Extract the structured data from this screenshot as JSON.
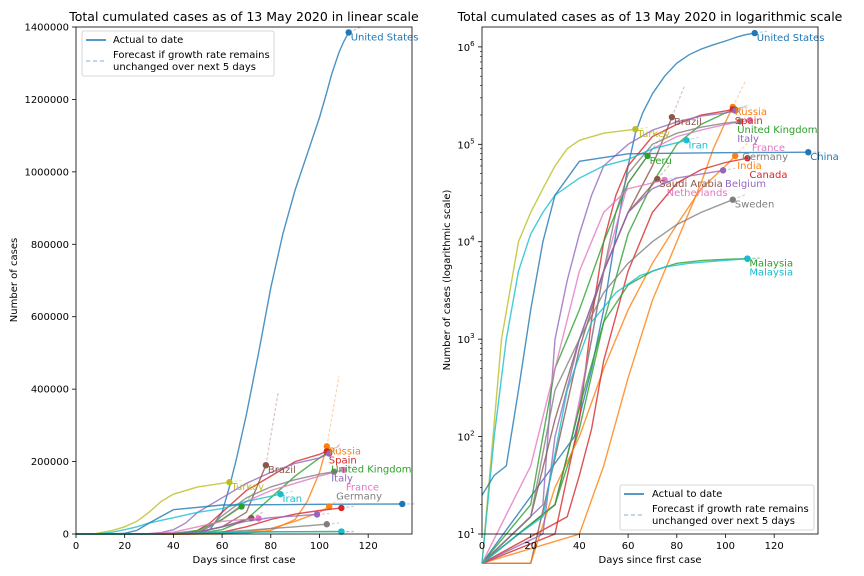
{
  "chart_data": [
    {
      "type": "line",
      "title": "Total cumulated cases as of 13 May 2020 in linear scale",
      "xlabel": "Days since first case",
      "ylabel": "Number of cases",
      "xlim": [
        0,
        138
      ],
      "ylim": [
        0,
        1400000
      ],
      "xticks": [
        0,
        20,
        40,
        60,
        80,
        100,
        120
      ],
      "yticks": [
        0,
        200000,
        400000,
        600000,
        800000,
        1000000,
        1200000,
        1400000
      ],
      "legend": {
        "position": "top-left",
        "entries": [
          "Actual to date",
          "Forecast if growth rate remains unchanged over next 5 days"
        ]
      },
      "series": [
        {
          "name": "United States",
          "color": "#1f77b4",
          "x": [
            0,
            38,
            45,
            50,
            55,
            60,
            63,
            66,
            70,
            75,
            80,
            85,
            90,
            95,
            100,
            103,
            105,
            108,
            110,
            112
          ],
          "y": [
            1,
            100,
            500,
            2000,
            12000,
            60000,
            130000,
            210000,
            330000,
            500000,
            680000,
            830000,
            950000,
            1050000,
            1150000,
            1220000,
            1270000,
            1330000,
            1360000,
            1385000
          ]
        },
        {
          "name": "Russia",
          "color": "#ff7f0e",
          "x": [
            0,
            40,
            50,
            60,
            70,
            80,
            90,
            95,
            100,
            103
          ],
          "y": [
            1,
            10,
            50,
            400,
            2500,
            10000,
            40000,
            90000,
            170000,
            242000
          ]
        },
        {
          "name": "United Kingdom",
          "color": "#2ca02c",
          "x": [
            0,
            30,
            40,
            50,
            60,
            70,
            80,
            90,
            100,
            104
          ],
          "y": [
            1,
            20,
            120,
            1500,
            12000,
            40000,
            100000,
            160000,
            210000,
            227000
          ]
        },
        {
          "name": "Spain",
          "color": "#d62728",
          "x": [
            0,
            30,
            40,
            45,
            50,
            55,
            60,
            70,
            80,
            90,
            100,
            103
          ],
          "y": [
            1,
            10,
            150,
            1600,
            10000,
            30000,
            60000,
            120000,
            160000,
            200000,
            220000,
            228000
          ]
        },
        {
          "name": "Italy",
          "color": "#9467bd",
          "x": [
            0,
            25,
            30,
            35,
            40,
            45,
            50,
            60,
            70,
            80,
            90,
            100,
            104
          ],
          "y": [
            1,
            20,
            1000,
            4000,
            12000,
            30000,
            60000,
            100000,
            140000,
            170000,
            195000,
            210000,
            222000
          ]
        },
        {
          "name": "Brazil",
          "color": "#8c564b",
          "x": [
            0,
            20,
            30,
            40,
            50,
            60,
            70,
            78
          ],
          "y": [
            1,
            5,
            60,
            800,
            5000,
            20000,
            60000,
            190000
          ]
        },
        {
          "name": "France",
          "color": "#e377c2",
          "x": [
            0,
            30,
            37,
            45,
            50,
            60,
            70,
            80,
            90,
            100,
            110
          ],
          "y": [
            1,
            20,
            100,
            1000,
            5000,
            40000,
            90000,
            120000,
            140000,
            160000,
            177000
          ]
        },
        {
          "name": "Germany",
          "color": "#7f7f7f",
          "x": [
            0,
            30,
            40,
            50,
            55,
            60,
            70,
            80,
            90,
            100,
            106
          ],
          "y": [
            1,
            20,
            200,
            5000,
            20000,
            50000,
            100000,
            130000,
            150000,
            165000,
            172000
          ]
        },
        {
          "name": "Turkey",
          "color": "#bcbd22",
          "x": [
            0,
            8,
            15,
            20,
            25,
            30,
            35,
            40,
            50,
            63
          ],
          "y": [
            1,
            1000,
            10000,
            20000,
            35000,
            60000,
            90000,
            110000,
            130000,
            143000
          ]
        },
        {
          "name": "Iran",
          "color": "#17becf",
          "x": [
            0,
            5,
            10,
            15,
            20,
            25,
            30,
            40,
            50,
            60,
            70,
            84
          ],
          "y": [
            1,
            100,
            1000,
            5000,
            12000,
            20000,
            30000,
            45000,
            60000,
            70000,
            90000,
            110000
          ]
        },
        {
          "name": "China",
          "color": "#1f77b4",
          "x": [
            0,
            5,
            10,
            15,
            20,
            25,
            30,
            40,
            60,
            80,
            100,
            120,
            134
          ],
          "y": [
            25,
            40,
            50,
            300,
            2000,
            10000,
            30000,
            67000,
            80000,
            81000,
            82000,
            82500,
            82900
          ]
        },
        {
          "name": "Peru",
          "color": "#2ca02c",
          "x": [
            0,
            20,
            30,
            40,
            50,
            60,
            68
          ],
          "y": [
            1,
            20,
            500,
            2000,
            10000,
            40000,
            76000
          ]
        },
        {
          "name": "India",
          "color": "#ff7f0e",
          "x": [
            0,
            20,
            30,
            40,
            50,
            60,
            70,
            80,
            90,
            100,
            104
          ],
          "y": [
            1,
            5,
            30,
            100,
            500,
            2000,
            6000,
            15000,
            35000,
            60000,
            76000
          ]
        },
        {
          "name": "Canada",
          "color": "#d62728",
          "x": [
            0,
            35,
            40,
            45,
            50,
            60,
            70,
            80,
            90,
            100,
            109
          ],
          "y": [
            1,
            15,
            40,
            120,
            600,
            5000,
            20000,
            40000,
            55000,
            65000,
            72000
          ]
        },
        {
          "name": "Saudi Arabia",
          "color": "#8c564b",
          "x": [
            0,
            20,
            30,
            40,
            50,
            60,
            72
          ],
          "y": [
            1,
            15,
            150,
            1000,
            5000,
            20000,
            44000
          ]
        },
        {
          "name": "Netherlands",
          "color": "#e377c2",
          "x": [
            0,
            20,
            30,
            40,
            50,
            60,
            75
          ],
          "y": [
            1,
            50,
            500,
            5000,
            20000,
            35000,
            43000
          ]
        },
        {
          "name": "Belgium",
          "color": "#9467bd",
          "x": [
            0,
            25,
            30,
            40,
            50,
            60,
            70,
            80,
            99
          ],
          "y": [
            1,
            10,
            100,
            1000,
            5000,
            20000,
            35000,
            45000,
            54000
          ]
        },
        {
          "name": "Sweden",
          "color": "#7f7f7f",
          "x": [
            0,
            20,
            30,
            40,
            50,
            60,
            70,
            80,
            90,
            103
          ],
          "y": [
            1,
            15,
            300,
            1000,
            3000,
            6000,
            10000,
            15000,
            20000,
            27000
          ]
        },
        {
          "name": "Malaysia",
          "color": "#2ca02c",
          "x": [
            0,
            30,
            40,
            50,
            60,
            70,
            80,
            90,
            100,
            109
          ],
          "y": [
            1,
            20,
            200,
            1500,
            3600,
            5000,
            6000,
            6400,
            6600,
            6700
          ]
        },
        {
          "name": "Malaysia",
          "color": "#17becf",
          "x": [
            0,
            15,
            25,
            35,
            45,
            55,
            65,
            75,
            85,
            95,
            109
          ],
          "y": [
            1,
            10,
            15,
            300,
            1500,
            3000,
            4500,
            5500,
            6000,
            6300,
            6700
          ]
        }
      ]
    },
    {
      "type": "line",
      "title": "Total cumulated cases as of 13 May 2020 in logarithmic scale",
      "xlabel": "Days since first case",
      "ylabel": "Number of cases (logarithmic scale)",
      "xlim": [
        0,
        138
      ],
      "ylim": [
        10,
        1600000
      ],
      "yscale": "log",
      "xticks": [
        0,
        20,
        40,
        60,
        80,
        100,
        120
      ],
      "yticks": [
        "10^1",
        "10^2",
        "10^3",
        "10^4",
        "10^5",
        "10^6"
      ],
      "legend": {
        "position": "bottom-right",
        "entries": [
          "Actual to date",
          "Forecast if growth rate remains unchanged over next 5 days"
        ]
      }
    }
  ],
  "labels_left": [
    {
      "text": "United States",
      "color": "#1f77b4"
    },
    {
      "text": "Russia",
      "color": "#ff7f0e"
    },
    {
      "text": "Spain",
      "color": "#d62728"
    },
    {
      "text": "United Kingdom",
      "color": "#2ca02c"
    },
    {
      "text": "Italy",
      "color": "#9467bd"
    },
    {
      "text": "Brazil",
      "color": "#8c564b"
    },
    {
      "text": "France",
      "color": "#e377c2"
    },
    {
      "text": "Germany",
      "color": "#7f7f7f"
    },
    {
      "text": "Turkey",
      "color": "#bcbd22"
    },
    {
      "text": "Iran",
      "color": "#17becf"
    }
  ],
  "labels_right": [
    {
      "text": "United States",
      "color": "#1f77b4"
    },
    {
      "text": "Russia",
      "color": "#ff7f0e"
    },
    {
      "text": "Spain",
      "color": "#d62728"
    },
    {
      "text": "United Kingdom",
      "color": "#2ca02c"
    },
    {
      "text": "Italy",
      "color": "#9467bd"
    },
    {
      "text": "France",
      "color": "#e377c2"
    },
    {
      "text": "Germany",
      "color": "#7f7f7f"
    },
    {
      "text": "Brazil",
      "color": "#8c564b"
    },
    {
      "text": "Turkey",
      "color": "#bcbd22"
    },
    {
      "text": "Iran",
      "color": "#17becf"
    },
    {
      "text": "China",
      "color": "#1f77b4"
    },
    {
      "text": "Peru",
      "color": "#2ca02c"
    },
    {
      "text": "India",
      "color": "#ff7f0e"
    },
    {
      "text": "Canada",
      "color": "#d62728"
    },
    {
      "text": "Saudi Arabia",
      "color": "#8c564b"
    },
    {
      "text": "Netherlands",
      "color": "#e377c2"
    },
    {
      "text": "Belgium",
      "color": "#9467bd"
    },
    {
      "text": "Sweden",
      "color": "#7f7f7f"
    },
    {
      "text": "Malaysia",
      "color": "#2ca02c"
    },
    {
      "text": "Malaysia",
      "color": "#17becf"
    }
  ]
}
